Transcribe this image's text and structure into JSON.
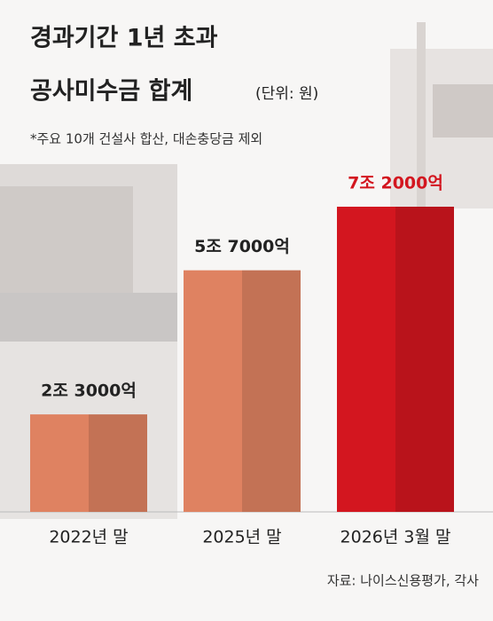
{
  "chart_data": {
    "type": "bar",
    "title": "경과기간 1년 초과",
    "title_line2": "공사미수금 합계",
    "unit": "(단위: 원)",
    "note": "*주요 10개 건설사 합산, 대손충당금 제외",
    "categories": [
      "2022년 말",
      "2025년 말",
      "2026년 3월 말"
    ],
    "values": [
      2300000000000,
      5700000000000,
      7200000000000
    ],
    "value_labels": [
      "2조 3000억",
      "5조 7000억",
      "7조 2000억"
    ],
    "colors": [
      "#df8261",
      "#df8261",
      "#d3161f"
    ],
    "label_colors": [
      "#222222",
      "#222222",
      "#d3161f"
    ],
    "source": "자료: 나이스신용평가, 각사"
  }
}
